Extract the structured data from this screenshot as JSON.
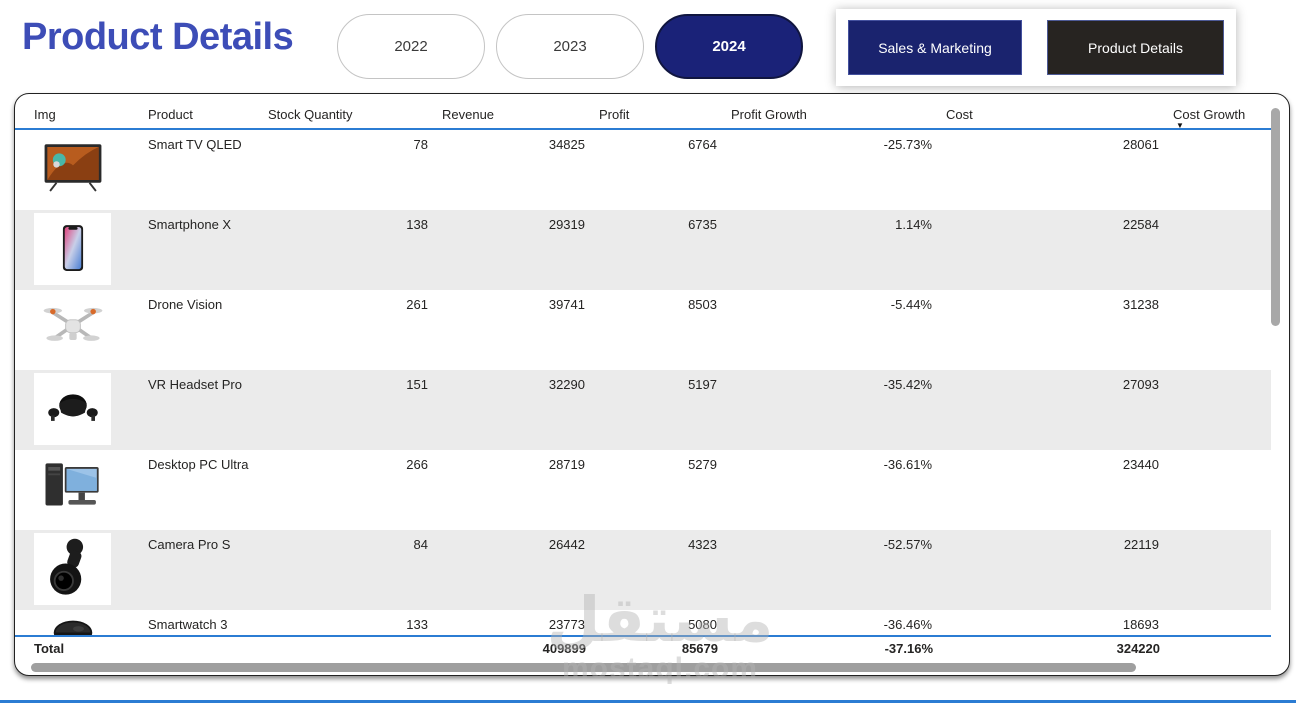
{
  "page": {
    "title": "Product Details",
    "watermark": {
      "arabic": "مستقل",
      "domain": "mostaql.com"
    }
  },
  "filters": {
    "years": [
      {
        "label": "2022",
        "selected": false
      },
      {
        "label": "2023",
        "selected": false
      },
      {
        "label": "2024",
        "selected": true
      }
    ]
  },
  "nav": {
    "buttons": [
      {
        "label": "Sales & Marketing"
      },
      {
        "label": "Product Details"
      }
    ]
  },
  "colors": {
    "title_accent": "#3D4DB7",
    "selected_year_bg": "#1A2278",
    "nav_primary_bg": "#1A236E",
    "nav_dark_bg": "#272421",
    "table_header_line": "#2b7cd3",
    "row_stripe": "#ebebeb"
  },
  "table": {
    "columns": [
      "Img",
      "Product",
      "Stock Quantity",
      "Revenue",
      "Profit",
      "Profit Growth",
      "Cost",
      "Cost Growth"
    ],
    "sorted_column": "Cost Growth",
    "sort_direction": "descending",
    "sort_icon": "▼",
    "rows": [
      {
        "image": "smart-tv",
        "product": "Smart TV QLED",
        "stock": "78",
        "revenue": "34825",
        "profit": "6764",
        "profit_growth": "-25.73%",
        "cost": "28061",
        "cost_growth": ""
      },
      {
        "image": "smartphone",
        "product": "Smartphone X",
        "stock": "138",
        "revenue": "29319",
        "profit": "6735",
        "profit_growth": "1.14%",
        "cost": "22584",
        "cost_growth": ""
      },
      {
        "image": "drone",
        "product": "Drone Vision",
        "stock": "261",
        "revenue": "39741",
        "profit": "8503",
        "profit_growth": "-5.44%",
        "cost": "31238",
        "cost_growth": ""
      },
      {
        "image": "vr-headset",
        "product": "VR Headset Pro",
        "stock": "151",
        "revenue": "32290",
        "profit": "5197",
        "profit_growth": "-35.42%",
        "cost": "27093",
        "cost_growth": ""
      },
      {
        "image": "desktop-pc",
        "product": "Desktop PC Ultra",
        "stock": "266",
        "revenue": "28719",
        "profit": "5279",
        "profit_growth": "-36.61%",
        "cost": "23440",
        "cost_growth": ""
      },
      {
        "image": "camera",
        "product": "Camera Pro S",
        "stock": "84",
        "revenue": "26442",
        "profit": "4323",
        "profit_growth": "-52.57%",
        "cost": "22119",
        "cost_growth": ""
      },
      {
        "image": "smartwatch",
        "product": "Smartwatch 3",
        "stock": "133",
        "revenue": "23773",
        "profit": "5080",
        "profit_growth": "-36.46%",
        "cost": "18693",
        "cost_growth": ""
      }
    ],
    "total": {
      "label": "Total",
      "stock": "",
      "revenue": "409899",
      "profit": "85679",
      "profit_growth": "-37.16%",
      "cost": "324220",
      "cost_growth": ""
    }
  }
}
